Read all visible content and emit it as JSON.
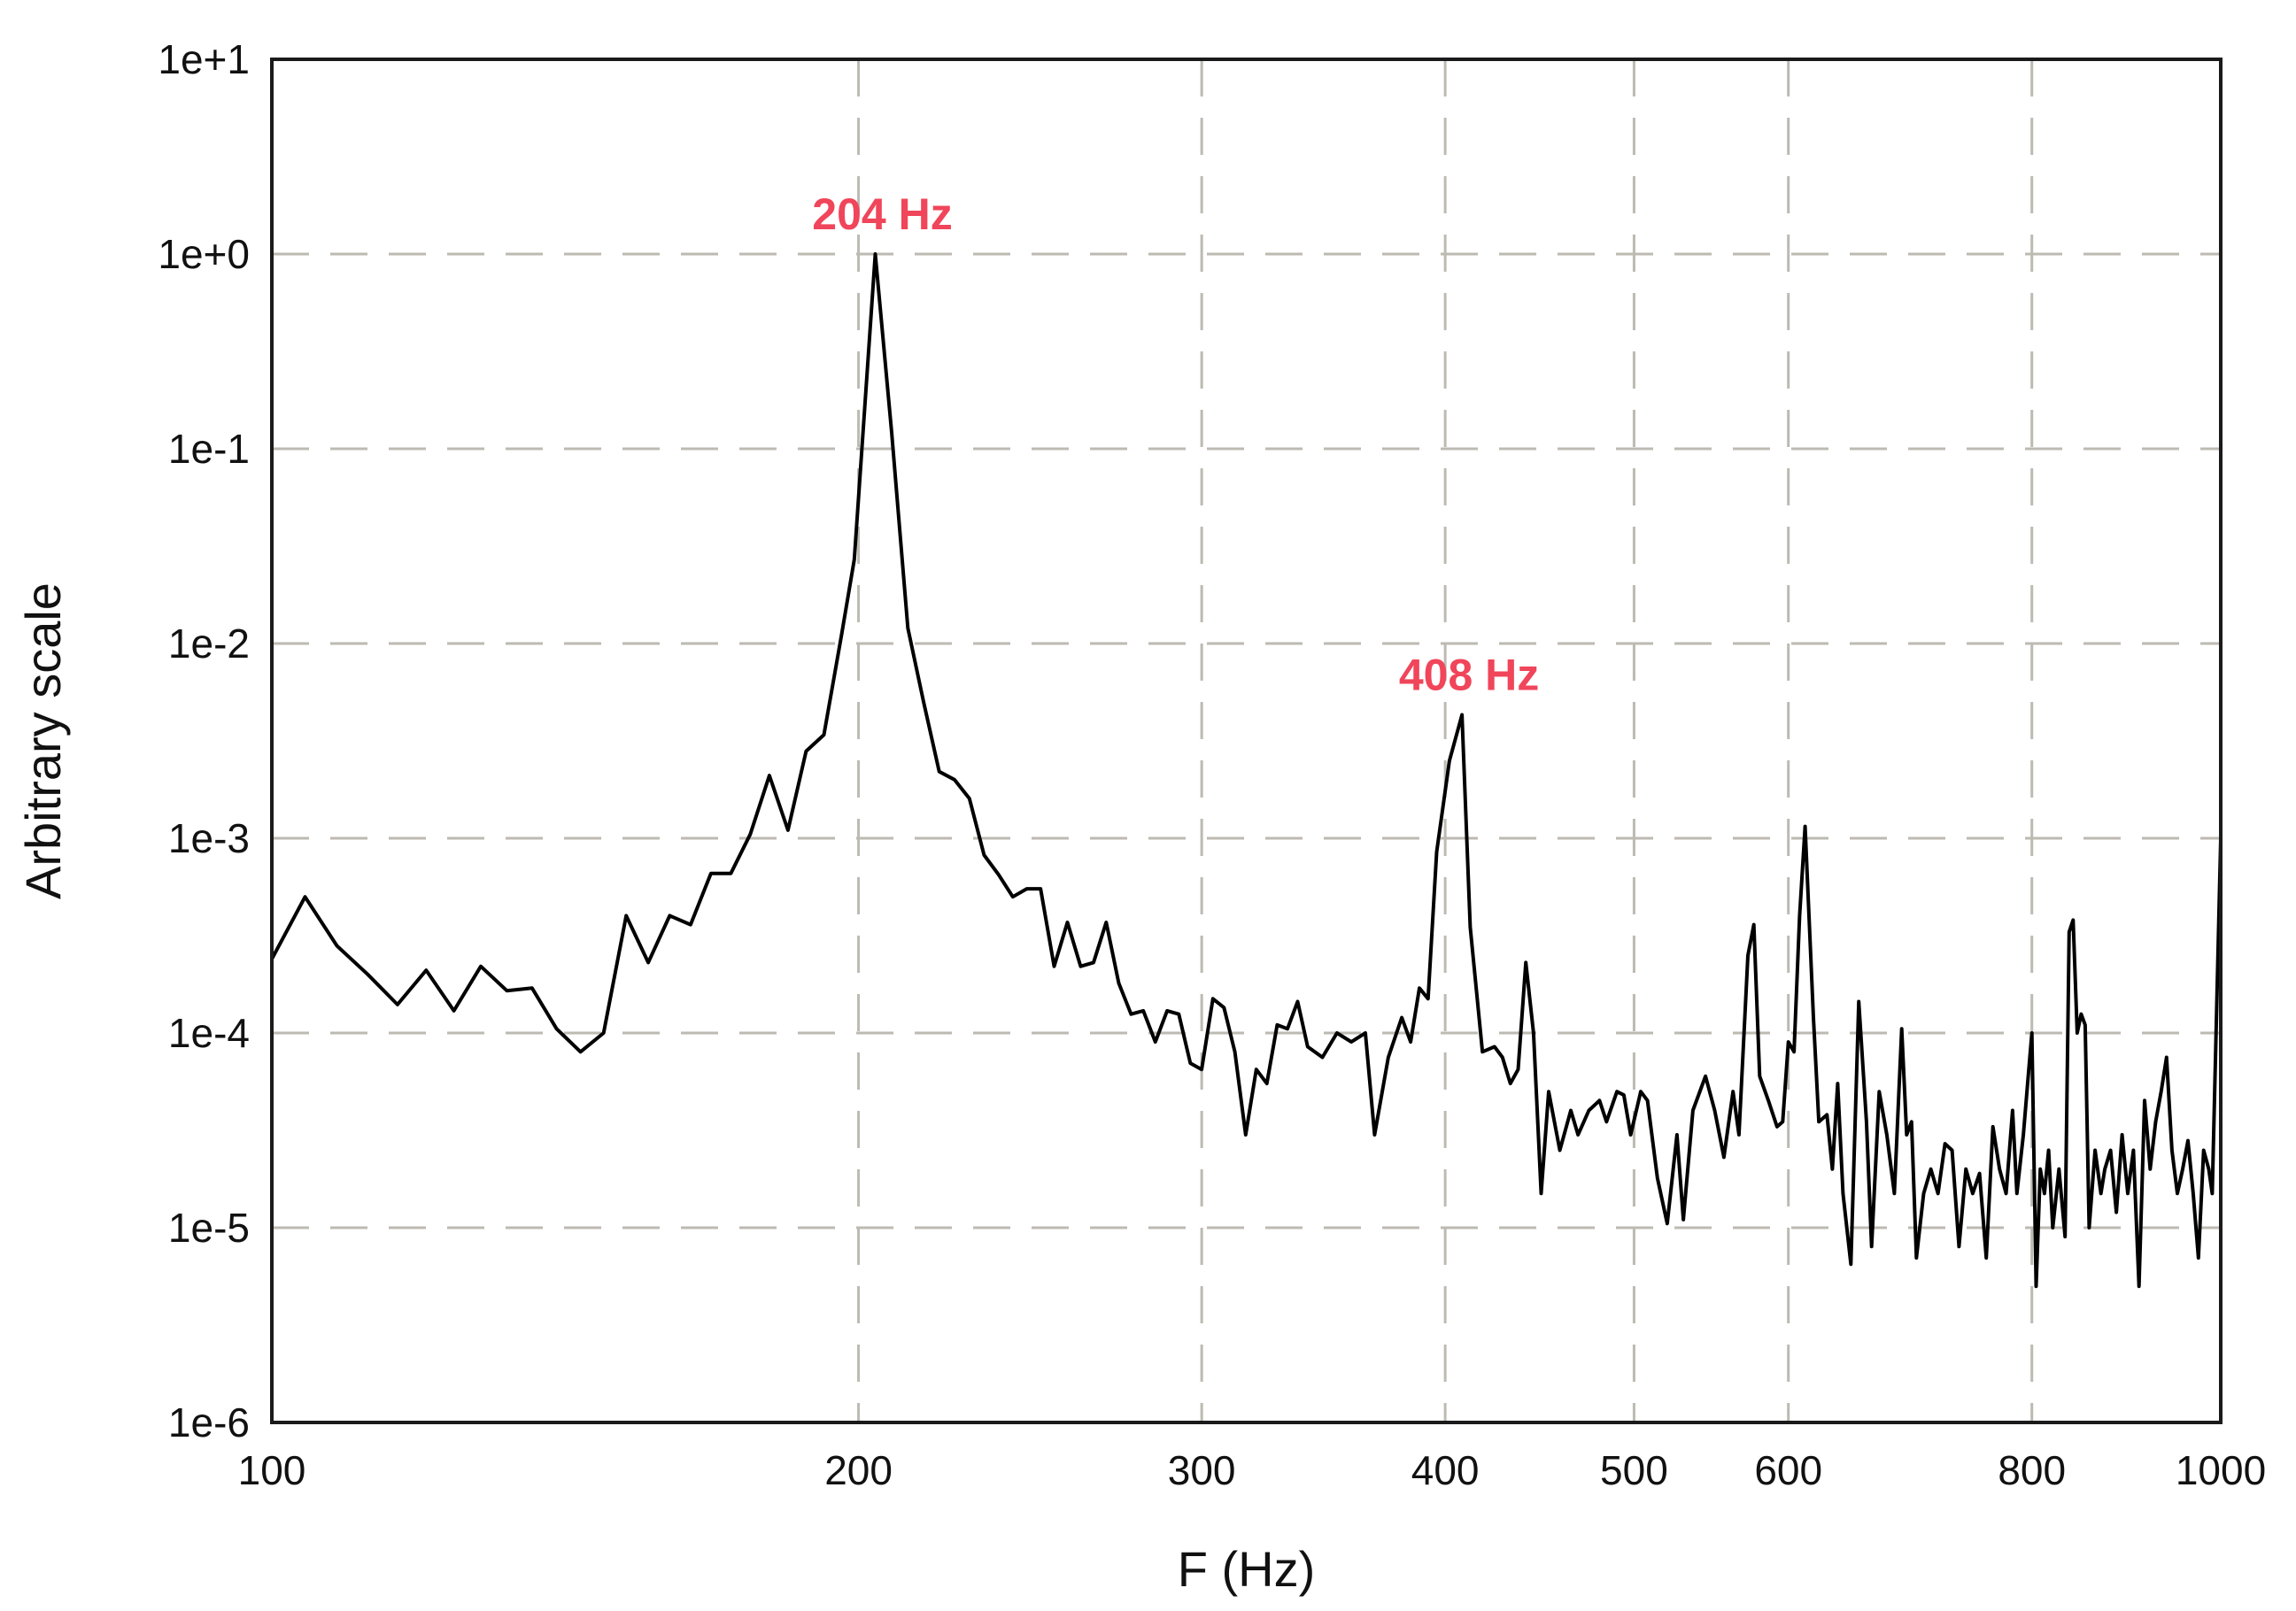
{
  "chart_data": {
    "type": "line",
    "title": "",
    "xlabel": "F (Hz)",
    "ylabel": "Arbitrary scale",
    "xscale": "log",
    "yscale": "log",
    "xlim": [
      100,
      1000
    ],
    "ylim": [
      1e-06,
      10
    ],
    "grid": true,
    "legend": "none",
    "line_color": "#000000",
    "grid_color": "#bdbab2",
    "annotation_color": "#f0455a",
    "x_ticks": [
      {
        "value": 100,
        "label": "100"
      },
      {
        "value": 200,
        "label": "200"
      },
      {
        "value": 300,
        "label": "300"
      },
      {
        "value": 400,
        "label": "400"
      },
      {
        "value": 500,
        "label": "500"
      },
      {
        "value": 600,
        "label": "600"
      },
      {
        "value": 800,
        "label": "800"
      },
      {
        "value": 1000,
        "label": "1000"
      }
    ],
    "y_ticks": [
      {
        "value": 1e-06,
        "label": "1e-6"
      },
      {
        "value": 1e-05,
        "label": "1e-5"
      },
      {
        "value": 0.0001,
        "label": "1e-4"
      },
      {
        "value": 0.001,
        "label": "1e-3"
      },
      {
        "value": 0.01,
        "label": "1e-2"
      },
      {
        "value": 0.1,
        "label": "1e-1"
      },
      {
        "value": 1,
        "label": "1e+0"
      },
      {
        "value": 10,
        "label": "1e+1"
      }
    ],
    "annotations": [
      {
        "text": "204 Hz",
        "x": 204,
        "y": 1.0
      },
      {
        "text": "408 Hz",
        "x": 408,
        "y": 0.0043
      }
    ],
    "series": [
      {
        "points": [
          [
            100,
            0.00024
          ],
          [
            104,
            0.0005
          ],
          [
            108,
            0.00028
          ],
          [
            112,
            0.0002
          ],
          [
            116,
            0.00014
          ],
          [
            120,
            0.00021
          ],
          [
            124,
            0.00013
          ],
          [
            128,
            0.00022
          ],
          [
            132,
            0.000165
          ],
          [
            136,
            0.00017
          ],
          [
            140,
            0.000105
          ],
          [
            144,
            8e-05
          ],
          [
            148,
            0.0001
          ],
          [
            152,
            0.0004
          ],
          [
            156,
            0.00023
          ],
          [
            160,
            0.0004
          ],
          [
            164,
            0.00036
          ],
          [
            168,
            0.00066
          ],
          [
            172,
            0.00066
          ],
          [
            176,
            0.00105
          ],
          [
            180,
            0.0021
          ],
          [
            184,
            0.0011
          ],
          [
            188,
            0.0028
          ],
          [
            192,
            0.0034
          ],
          [
            196,
            0.011
          ],
          [
            199,
            0.027
          ],
          [
            204,
            1.0
          ],
          [
            208,
            0.12
          ],
          [
            212,
            0.012
          ],
          [
            216,
            0.005
          ],
          [
            220,
            0.0022
          ],
          [
            224,
            0.002
          ],
          [
            228,
            0.0016
          ],
          [
            232,
            0.00082
          ],
          [
            236,
            0.00065
          ],
          [
            240,
            0.0005
          ],
          [
            244,
            0.00055
          ],
          [
            248,
            0.00055
          ],
          [
            252,
            0.00022
          ],
          [
            256,
            0.00037
          ],
          [
            260,
            0.00022
          ],
          [
            264,
            0.00023
          ],
          [
            268,
            0.00037
          ],
          [
            272,
            0.00018
          ],
          [
            276,
            0.000125
          ],
          [
            280,
            0.00013
          ],
          [
            284,
            9e-05
          ],
          [
            288,
            0.00013
          ],
          [
            292,
            0.000125
          ],
          [
            296,
            7e-05
          ],
          [
            300,
            6.5e-05
          ],
          [
            304,
            0.00015
          ],
          [
            308,
            0.000135
          ],
          [
            312,
            8e-05
          ],
          [
            316,
            3e-05
          ],
          [
            320,
            6.5e-05
          ],
          [
            324,
            5.5e-05
          ],
          [
            328,
            0.00011
          ],
          [
            332,
            0.000105
          ],
          [
            336,
            0.000145
          ],
          [
            340,
            8.5e-05
          ],
          [
            346,
            7.5e-05
          ],
          [
            352,
            0.0001
          ],
          [
            358,
            9e-05
          ],
          [
            364,
            0.0001
          ],
          [
            368,
            3e-05
          ],
          [
            374,
            7.5e-05
          ],
          [
            380,
            0.00012
          ],
          [
            384,
            9e-05
          ],
          [
            388,
            0.00017
          ],
          [
            392,
            0.00015
          ],
          [
            396,
            0.00085
          ],
          [
            402,
            0.0025
          ],
          [
            408,
            0.0043
          ],
          [
            412,
            0.00035
          ],
          [
            418,
            8e-05
          ],
          [
            424,
            8.5e-05
          ],
          [
            428,
            7.5e-05
          ],
          [
            432,
            5.5e-05
          ],
          [
            436,
            6.5e-05
          ],
          [
            440,
            0.00023
          ],
          [
            444,
            0.0001
          ],
          [
            448,
            1.5e-05
          ],
          [
            452,
            5e-05
          ],
          [
            458,
            2.5e-05
          ],
          [
            464,
            4e-05
          ],
          [
            468,
            3e-05
          ],
          [
            474,
            4e-05
          ],
          [
            480,
            4.5e-05
          ],
          [
            484,
            3.5e-05
          ],
          [
            490,
            5e-05
          ],
          [
            494,
            4.8e-05
          ],
          [
            498,
            3e-05
          ],
          [
            504,
            5e-05
          ],
          [
            508,
            4.5e-05
          ],
          [
            514,
            1.8e-05
          ],
          [
            520,
            1.05e-05
          ],
          [
            526,
            3e-05
          ],
          [
            530,
            1.1e-05
          ],
          [
            536,
            4e-05
          ],
          [
            544,
            6e-05
          ],
          [
            550,
            4e-05
          ],
          [
            556,
            2.3e-05
          ],
          [
            562,
            5e-05
          ],
          [
            566,
            3e-05
          ],
          [
            572,
            0.00025
          ],
          [
            576,
            0.00036
          ],
          [
            580,
            6e-05
          ],
          [
            586,
            4.5e-05
          ],
          [
            592,
            3.3e-05
          ],
          [
            596,
            3.5e-05
          ],
          [
            600,
            9e-05
          ],
          [
            604,
            8e-05
          ],
          [
            608,
            0.0004
          ],
          [
            612,
            0.00115
          ],
          [
            618,
            0.00012
          ],
          [
            622,
            3.5e-05
          ],
          [
            628,
            3.8e-05
          ],
          [
            632,
            2e-05
          ],
          [
            636,
            5.5e-05
          ],
          [
            640,
            1.5e-05
          ],
          [
            646,
            6.5e-06
          ],
          [
            652,
            0.000145
          ],
          [
            658,
            3.5e-05
          ],
          [
            662,
            8e-06
          ],
          [
            668,
            5e-05
          ],
          [
            674,
            3e-05
          ],
          [
            680,
            1.5e-05
          ],
          [
            686,
            0.000105
          ],
          [
            690,
            3e-05
          ],
          [
            694,
            3.5e-05
          ],
          [
            698,
            7e-06
          ],
          [
            704,
            1.5e-05
          ],
          [
            710,
            2e-05
          ],
          [
            716,
            1.5e-05
          ],
          [
            722,
            2.7e-05
          ],
          [
            728,
            2.5e-05
          ],
          [
            734,
            8e-06
          ],
          [
            740,
            2e-05
          ],
          [
            746,
            1.5e-05
          ],
          [
            752,
            1.9e-05
          ],
          [
            758,
            7e-06
          ],
          [
            764,
            3.3e-05
          ],
          [
            770,
            2e-05
          ],
          [
            776,
            1.5e-05
          ],
          [
            782,
            4e-05
          ],
          [
            786,
            1.5e-05
          ],
          [
            792,
            3e-05
          ],
          [
            796,
            5.5e-05
          ],
          [
            800,
            0.0001
          ],
          [
            804,
            5e-06
          ],
          [
            808,
            2e-05
          ],
          [
            812,
            1.5e-05
          ],
          [
            816,
            2.5e-05
          ],
          [
            820,
            1e-05
          ],
          [
            826,
            2e-05
          ],
          [
            832,
            9e-06
          ],
          [
            836,
            0.00033
          ],
          [
            840,
            0.00038
          ],
          [
            844,
            0.0001
          ],
          [
            848,
            0.000125
          ],
          [
            852,
            0.00011
          ],
          [
            856,
            1e-05
          ],
          [
            862,
            2.5e-05
          ],
          [
            868,
            1.5e-05
          ],
          [
            872,
            2e-05
          ],
          [
            878,
            2.5e-05
          ],
          [
            884,
            1.2e-05
          ],
          [
            890,
            3e-05
          ],
          [
            896,
            1.5e-05
          ],
          [
            902,
            2.5e-05
          ],
          [
            908,
            5e-06
          ],
          [
            914,
            4.5e-05
          ],
          [
            920,
            2e-05
          ],
          [
            926,
            3.5e-05
          ],
          [
            932,
            5e-05
          ],
          [
            938,
            7.5e-05
          ],
          [
            944,
            2.5e-05
          ],
          [
            950,
            1.5e-05
          ],
          [
            956,
            2e-05
          ],
          [
            962,
            2.8e-05
          ],
          [
            968,
            1.5e-05
          ],
          [
            974,
            7e-06
          ],
          [
            980,
            2.5e-05
          ],
          [
            986,
            2e-05
          ],
          [
            990,
            1.5e-05
          ],
          [
            1000,
            0.001
          ]
        ]
      }
    ]
  }
}
